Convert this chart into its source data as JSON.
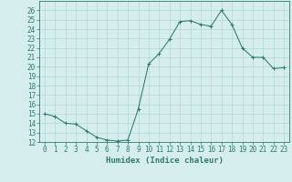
{
  "x": [
    0,
    1,
    2,
    3,
    4,
    5,
    6,
    7,
    8,
    9,
    10,
    11,
    12,
    13,
    14,
    15,
    16,
    17,
    18,
    19,
    20,
    21,
    22,
    23
  ],
  "y": [
    15.0,
    14.7,
    14.0,
    13.9,
    13.2,
    12.5,
    12.2,
    12.1,
    12.2,
    15.5,
    20.3,
    21.4,
    22.9,
    24.8,
    24.9,
    24.5,
    24.3,
    26.0,
    24.5,
    22.0,
    21.0,
    21.0,
    19.8,
    19.9
  ],
  "line_color": "#2e7b6e",
  "marker": "+",
  "marker_size": 3,
  "bg_color": "#d5eeed",
  "grid_color": "#b2d8d4",
  "xlabel": "Humidex (Indice chaleur)",
  "xlim": [
    -0.5,
    23.5
  ],
  "ylim": [
    12,
    27
  ],
  "yticks": [
    12,
    13,
    14,
    15,
    16,
    17,
    18,
    19,
    20,
    21,
    22,
    23,
    24,
    25,
    26
  ],
  "xticks": [
    0,
    1,
    2,
    3,
    4,
    5,
    6,
    7,
    8,
    9,
    10,
    11,
    12,
    13,
    14,
    15,
    16,
    17,
    18,
    19,
    20,
    21,
    22,
    23
  ],
  "tick_label_fontsize": 5.5,
  "xlabel_fontsize": 6.5,
  "axis_color": "#2e7b6e"
}
